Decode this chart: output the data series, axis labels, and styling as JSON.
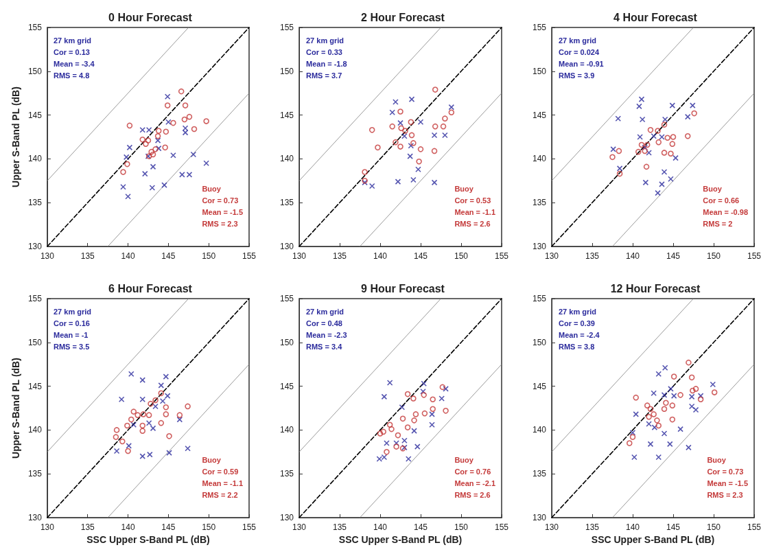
{
  "chart_data": [
    {
      "type": "scatter",
      "title": "0 Hour Forecast",
      "ylabel": "Upper S-Band PL (dB)",
      "xlim": [
        130,
        155
      ],
      "ylim": [
        130,
        155
      ],
      "xticks": [
        130,
        135,
        140,
        145,
        150,
        155
      ],
      "yticks": [
        130,
        135,
        140,
        145,
        150,
        155
      ],
      "grid": false,
      "annotations": [
        "27 km grid\nCor = 0.13\nMean = -3.4\nRMS = 4.8",
        "Buoy\nCor = 0.73\nMean = -1.5\nRMS = 2.3"
      ],
      "series": [
        {
          "color": "#2a2a9c",
          "marker": "cross",
          "x": [
            144.9,
            145.0,
            147.1,
            147.1,
            141.8,
            142.6,
            140.2,
            139.8,
            143.8,
            145.6,
            148.1,
            143.1,
            142.1,
            146.7,
            147.6,
            149.7,
            139.4,
            140.0,
            143.0,
            144.5,
            142.5,
            143.7
          ],
          "values": [
            147.1,
            144.2,
            143.5,
            143.0,
            143.3,
            143.3,
            141.3,
            140.2,
            141.2,
            140.4,
            140.5,
            139.1,
            138.3,
            138.2,
            138.2,
            139.5,
            136.8,
            135.7,
            136.7,
            137.0,
            140.3,
            142.1
          ]
        },
        {
          "color": "#c43a3a",
          "marker": "circle",
          "x": [
            146.6,
            144.9,
            147.1,
            147.6,
            147.0,
            149.7,
            148.2,
            145.6,
            140.2,
            143.8,
            144.7,
            141.8,
            142.2,
            143.7,
            144.6,
            142.9,
            142.6,
            143.1,
            139.9,
            139.4,
            142.5,
            143.4
          ],
          "values": [
            147.7,
            146.1,
            146.1,
            144.8,
            144.5,
            144.3,
            143.4,
            144.1,
            143.8,
            143.2,
            143.1,
            142.2,
            141.7,
            142.6,
            141.3,
            140.8,
            140.3,
            140.5,
            139.4,
            138.5,
            142.1,
            141.1
          ]
        },
        {
          "type": "line",
          "color": "#000000",
          "line_style": "dashed",
          "x": [
            130,
            155
          ],
          "values": [
            130,
            155
          ]
        },
        {
          "type": "line",
          "color": "#808080",
          "line_style": "solid",
          "x": [
            130,
            147.5
          ],
          "values": [
            137.5,
            155
          ]
        },
        {
          "type": "line",
          "color": "#808080",
          "line_style": "solid",
          "x": [
            137.5,
            155
          ],
          "values": [
            130,
            147.5
          ]
        }
      ]
    },
    {
      "type": "scatter",
      "title": "2 Hour Forecast",
      "xlim": [
        130,
        155
      ],
      "ylim": [
        130,
        155
      ],
      "xticks": [
        130,
        135,
        140,
        145,
        150,
        155
      ],
      "yticks": [
        130,
        135,
        140,
        145,
        150,
        155
      ],
      "grid": false,
      "annotations": [
        "27 km grid\nCor = 0.33\nMean = -1.8\nRMS = 3.7",
        "Buoy\nCor = 0.53\nMean = -1.1\nRMS = 2.6"
      ],
      "series": [
        {
          "color": "#2a2a9c",
          "marker": "cross",
          "x": [
            141.9,
            143.9,
            141.5,
            148.8,
            142.5,
            145.0,
            146.7,
            148.0,
            143.0,
            143.8,
            143.7,
            144.7,
            138.1,
            139.0,
            142.2,
            144.1,
            146.7
          ],
          "values": [
            146.5,
            146.8,
            145.3,
            145.9,
            144.1,
            144.2,
            142.7,
            142.7,
            142.6,
            141.5,
            140.3,
            138.8,
            137.3,
            136.9,
            137.4,
            137.6,
            137.3
          ]
        },
        {
          "color": "#c43a3a",
          "marker": "circle",
          "x": [
            146.8,
            148.8,
            148.0,
            147.8,
            146.8,
            142.5,
            141.5,
            139.0,
            143.8,
            142.6,
            143.9,
            144.1,
            141.9,
            142.5,
            139.7,
            145.0,
            146.7,
            144.8,
            138.1,
            138.1,
            143.1
          ],
          "values": [
            147.9,
            145.3,
            144.6,
            143.7,
            143.7,
            145.4,
            143.7,
            143.3,
            144.2,
            143.5,
            142.7,
            141.8,
            141.9,
            141.4,
            141.3,
            141.1,
            140.9,
            139.7,
            138.5,
            137.5,
            143.2
          ]
        },
        {
          "type": "line",
          "color": "#000000",
          "line_style": "dashed",
          "x": [
            130,
            155
          ],
          "values": [
            130,
            155
          ]
        },
        {
          "type": "line",
          "color": "#808080",
          "line_style": "solid",
          "x": [
            130,
            147.5
          ],
          "values": [
            137.5,
            155
          ]
        },
        {
          "type": "line",
          "color": "#808080",
          "line_style": "solid",
          "x": [
            137.5,
            155
          ],
          "values": [
            130,
            147.5
          ]
        }
      ]
    },
    {
      "type": "scatter",
      "title": "4 Hour Forecast",
      "xlim": [
        130,
        155
      ],
      "ylim": [
        130,
        155
      ],
      "xticks": [
        130,
        135,
        140,
        145,
        150,
        155
      ],
      "yticks": [
        130,
        135,
        140,
        145,
        150,
        155
      ],
      "grid": false,
      "annotations": [
        "27 km grid\nCor = 0.024\nMean = -0.91\nRMS = 3.9",
        "Buoy\nCor = 0.66\nMean = -0.98\nRMS = 2"
      ],
      "series": [
        {
          "color": "#2a2a9c",
          "marker": "cross",
          "x": [
            141.1,
            140.8,
            144.9,
            147.4,
            138.2,
            141.2,
            144.0,
            146.8,
            140.9,
            142.6,
            143.6,
            137.6,
            142.0,
            145.3,
            138.4,
            143.9,
            144.7,
            141.6,
            143.6,
            143.1,
            141.5
          ],
          "values": [
            146.8,
            146.0,
            146.1,
            146.1,
            144.6,
            144.5,
            144.5,
            144.8,
            142.5,
            142.6,
            142.5,
            141.1,
            140.7,
            140.1,
            138.9,
            138.5,
            137.7,
            137.3,
            137.1,
            136.1,
            141.3
          ]
        },
        {
          "color": "#c43a3a",
          "marker": "circle",
          "x": [
            147.6,
            146.8,
            143.9,
            142.2,
            143.2,
            144.3,
            145.0,
            144.9,
            141.1,
            141.8,
            141.5,
            140.7,
            143.9,
            144.7,
            138.3,
            137.5,
            141.7,
            138.4,
            143.1
          ],
          "values": [
            145.2,
            142.6,
            143.9,
            143.3,
            141.9,
            142.4,
            142.5,
            141.7,
            141.6,
            141.6,
            140.9,
            140.8,
            140.7,
            140.6,
            140.9,
            140.2,
            139.1,
            138.3,
            143.2
          ]
        },
        {
          "type": "line",
          "color": "#000000",
          "line_style": "dashed",
          "x": [
            130,
            155
          ],
          "values": [
            130,
            155
          ]
        },
        {
          "type": "line",
          "color": "#808080",
          "line_style": "solid",
          "x": [
            130,
            147.5
          ],
          "values": [
            137.5,
            155
          ]
        },
        {
          "type": "line",
          "color": "#808080",
          "line_style": "solid",
          "x": [
            137.5,
            155
          ],
          "values": [
            130,
            147.5
          ]
        }
      ]
    },
    {
      "type": "scatter",
      "title": "6 Hour Forecast",
      "xlabel": "SSC Upper S-Band PL (dB)",
      "ylabel": "Upper S-Band PL (dB)",
      "xlim": [
        130,
        155
      ],
      "ylim": [
        130,
        155
      ],
      "xticks": [
        130,
        135,
        140,
        145,
        150,
        155
      ],
      "yticks": [
        130,
        135,
        140,
        145,
        150,
        155
      ],
      "grid": false,
      "annotations": [
        "27 km grid\nCor = 0.16\nMean = -1\nRMS = 3.5",
        "Buoy\nCor = 0.59\nMean = -1.1\nRMS = 2.2"
      ],
      "series": [
        {
          "color": "#2a2a9c",
          "marker": "cross",
          "x": [
            140.4,
            141.8,
            144.7,
            144.1,
            139.2,
            141.8,
            144.9,
            144.3,
            146.4,
            142.6,
            143.1,
            140.7,
            138.6,
            140.1,
            141.8,
            142.7,
            145.1,
            147.4,
            143.4
          ],
          "values": [
            146.4,
            145.7,
            146.1,
            145.1,
            143.5,
            143.5,
            143.9,
            143.3,
            141.2,
            140.8,
            140.2,
            140.6,
            137.6,
            138.2,
            137.0,
            137.2,
            137.4,
            137.9,
            142.7
          ]
        },
        {
          "color": "#c43a3a",
          "marker": "circle",
          "x": [
            144.1,
            143.4,
            142.8,
            144.7,
            144.7,
            147.4,
            146.4,
            140.7,
            141.2,
            141.9,
            142.6,
            144.1,
            141.8,
            141.8,
            145.1,
            139.9,
            138.6,
            138.5,
            139.3,
            140.0,
            140.4
          ],
          "values": [
            144.2,
            143.4,
            143.0,
            142.6,
            141.8,
            142.7,
            141.7,
            142.1,
            141.7,
            141.8,
            141.7,
            140.8,
            140.5,
            139.9,
            139.3,
            140.5,
            140.0,
            139.2,
            138.7,
            137.6,
            141.2
          ]
        },
        {
          "type": "line",
          "color": "#000000",
          "line_style": "dashed",
          "x": [
            130,
            155
          ],
          "values": [
            130,
            155
          ]
        },
        {
          "type": "line",
          "color": "#808080",
          "line_style": "solid",
          "x": [
            130,
            147.5
          ],
          "values": [
            137.5,
            155
          ]
        },
        {
          "type": "line",
          "color": "#808080",
          "line_style": "solid",
          "x": [
            137.5,
            155
          ],
          "values": [
            130,
            147.5
          ]
        }
      ]
    },
    {
      "type": "scatter",
      "title": "9 Hour Forecast",
      "xlabel": "SSC Upper S-Band PL (dB)",
      "xlim": [
        130,
        155
      ],
      "ylim": [
        130,
        155
      ],
      "xticks": [
        130,
        135,
        140,
        145,
        150,
        155
      ],
      "yticks": [
        130,
        135,
        140,
        145,
        150,
        155
      ],
      "grid": false,
      "annotations": [
        "27 km grid\nCor = 0.48\nMean = -2.3\nRMS = 3.4",
        "Buoy\nCor = 0.76\nMean = -2.1\nRMS = 2.6"
      ],
      "series": [
        {
          "color": "#2a2a9c",
          "marker": "cross",
          "x": [
            141.2,
            140.5,
            145.4,
            145.3,
            148.1,
            147.6,
            142.7,
            146.4,
            146.4,
            144.2,
            140.8,
            142.0,
            143.0,
            143.0,
            144.6,
            139.9,
            140.5,
            143.5
          ],
          "values": [
            145.4,
            143.8,
            145.3,
            144.4,
            144.7,
            143.6,
            142.6,
            141.8,
            140.6,
            139.9,
            138.5,
            138.5,
            138.8,
            138.0,
            138.1,
            136.7,
            136.9,
            136.7
          ]
        },
        {
          "color": "#c43a3a",
          "marker": "circle",
          "x": [
            147.7,
            145.4,
            144.1,
            143.4,
            146.5,
            146.5,
            148.1,
            145.5,
            144.4,
            142.8,
            141.2,
            141.4,
            140.4,
            140.0,
            143.4,
            142.2,
            142.0,
            140.8,
            142.8,
            144.2
          ],
          "values": [
            144.9,
            144.0,
            143.6,
            144.1,
            143.5,
            142.4,
            142.2,
            141.9,
            141.8,
            141.3,
            140.6,
            140.1,
            139.8,
            139.6,
            140.3,
            139.4,
            138.1,
            137.5,
            137.9,
            141.1
          ]
        },
        {
          "type": "line",
          "color": "#000000",
          "line_style": "dashed",
          "x": [
            130,
            155
          ],
          "values": [
            130,
            155
          ]
        },
        {
          "type": "line",
          "color": "#808080",
          "line_style": "solid",
          "x": [
            130,
            147.5
          ],
          "values": [
            137.5,
            155
          ]
        },
        {
          "type": "line",
          "color": "#808080",
          "line_style": "solid",
          "x": [
            137.5,
            155
          ],
          "values": [
            130,
            147.5
          ]
        }
      ]
    },
    {
      "type": "scatter",
      "title": "12 Hour Forecast",
      "xlabel": "SSC Upper S-Band PL (dB)",
      "xlim": [
        130,
        155
      ],
      "ylim": [
        130,
        155
      ],
      "xticks": [
        130,
        135,
        140,
        145,
        150,
        155
      ],
      "yticks": [
        130,
        135,
        140,
        145,
        150,
        155
      ],
      "grid": false,
      "annotations": [
        "27 km grid\nCor = 0.39\nMean = -2.4\nRMS = 3.8",
        "Buoy\nCor = 0.73\nMean = -1.5\nRMS = 2.3"
      ],
      "series": [
        {
          "color": "#2a2a9c",
          "marker": "cross",
          "x": [
            144.0,
            143.2,
            149.9,
            144.7,
            142.6,
            143.9,
            145.1,
            147.3,
            148.4,
            147.3,
            147.8,
            140.4,
            142.0,
            142.7,
            145.9,
            143.9,
            140.0,
            142.2,
            144.6,
            146.9,
            140.2,
            143.2
          ],
          "values": [
            147.1,
            146.4,
            145.2,
            144.7,
            144.2,
            144.0,
            143.9,
            143.8,
            143.9,
            142.7,
            142.3,
            141.8,
            140.7,
            140.3,
            140.1,
            139.6,
            139.7,
            138.4,
            138.4,
            138.0,
            136.9,
            136.9
          ]
        },
        {
          "color": "#c43a3a",
          "marker": "circle",
          "x": [
            146.9,
            145.1,
            147.3,
            147.4,
            147.8,
            150.1,
            148.4,
            145.9,
            140.4,
            144.1,
            144.9,
            143.9,
            142.2,
            142.6,
            143.0,
            143.2,
            144.9,
            142.0,
            140.0,
            139.6,
            141.8
          ],
          "values": [
            147.7,
            146.1,
            146.0,
            144.5,
            144.7,
            144.3,
            143.5,
            144.0,
            143.7,
            143.1,
            142.8,
            142.4,
            142.4,
            141.8,
            141.1,
            140.5,
            141.2,
            141.5,
            139.2,
            138.5,
            142.8
          ]
        },
        {
          "type": "line",
          "color": "#000000",
          "line_style": "dashed",
          "x": [
            130,
            155
          ],
          "values": [
            130,
            155
          ]
        },
        {
          "type": "line",
          "color": "#808080",
          "line_style": "solid",
          "x": [
            130,
            147.5
          ],
          "values": [
            137.5,
            155
          ]
        },
        {
          "type": "line",
          "color": "#808080",
          "line_style": "solid",
          "x": [
            137.5,
            155
          ],
          "values": [
            130,
            147.5
          ]
        }
      ]
    }
  ]
}
